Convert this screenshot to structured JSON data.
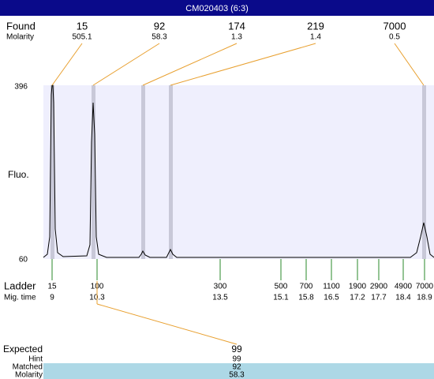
{
  "title": "CM020403 (6:3)",
  "found": {
    "label": "Found",
    "molarity_label": "Molarity",
    "peaks": [
      {
        "size": 15,
        "molarity": 505.1
      },
      {
        "size": 92,
        "molarity": 58.3
      },
      {
        "size": 174,
        "molarity": 1.3
      },
      {
        "size": 219,
        "molarity": 1.4
      },
      {
        "size": 7000,
        "molarity": 0.5
      }
    ]
  },
  "y_axis": {
    "label": "Fluo.",
    "max": 396,
    "min": 60
  },
  "ladder": {
    "label": "Ladder",
    "time_label": "Mig. time",
    "items": [
      {
        "size": 15,
        "time": 9
      },
      {
        "size": 100,
        "time": 10.3
      },
      {
        "size": 300,
        "time": 13.5
      },
      {
        "size": 500,
        "time": 15.1
      },
      {
        "size": 700,
        "time": 15.8
      },
      {
        "size": 1100,
        "time": 16.5
      },
      {
        "size": 1900,
        "time": 17.2
      },
      {
        "size": 2900,
        "time": 17.7
      },
      {
        "size": 4900,
        "time": 18.4
      },
      {
        "size": 7000,
        "time": 18.9
      }
    ]
  },
  "expected": {
    "labels": [
      "Expected",
      "Hint",
      "Matched",
      "Molarity"
    ],
    "values": [
      99,
      99,
      92,
      58.3
    ]
  }
}
